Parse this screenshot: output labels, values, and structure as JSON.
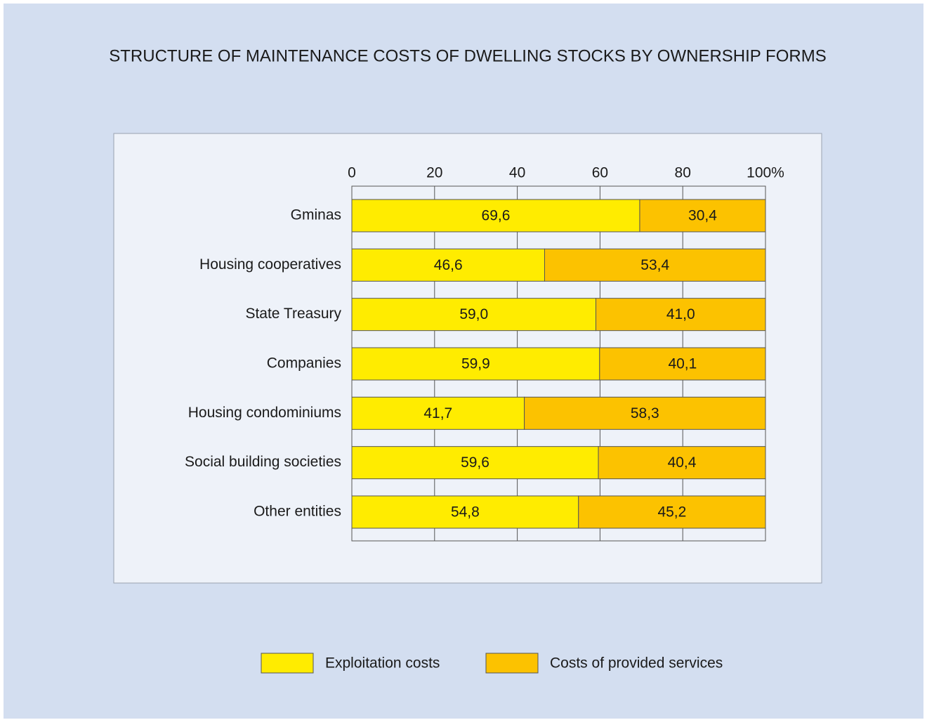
{
  "chart_data": {
    "type": "bar",
    "orientation": "horizontal",
    "stacked": true,
    "title": "STRUCTURE OF MAINTENANCE COSTS OF DWELLING STOCKS BY OWNERSHIP FORMS",
    "categories": [
      "Gminas",
      "Housing cooperatives",
      "State Treasury",
      "Companies",
      "Housing condominiums",
      "Social building societies",
      "Other entities"
    ],
    "series": [
      {
        "name": "Exploitation costs",
        "color": "#ffec00",
        "values": [
          69.6,
          46.6,
          59.0,
          59.9,
          41.7,
          59.6,
          54.8
        ],
        "value_labels": [
          "69,6",
          "46,6",
          "59,0",
          "59,9",
          "41,7",
          "59,6",
          "54,8"
        ]
      },
      {
        "name": "Costs of provided services",
        "color": "#fcc200",
        "values": [
          30.4,
          53.4,
          41.0,
          40.1,
          58.3,
          40.4,
          45.2
        ],
        "value_labels": [
          "30,4",
          "53,4",
          "41,0",
          "40,1",
          "58,3",
          "40,4",
          "45,2"
        ]
      }
    ],
    "xlim": [
      0,
      100
    ],
    "xticks": [
      0,
      20,
      40,
      60,
      80,
      {
        "value": 100,
        "label": "100%"
      }
    ],
    "grid": true,
    "legend": "bottom"
  }
}
